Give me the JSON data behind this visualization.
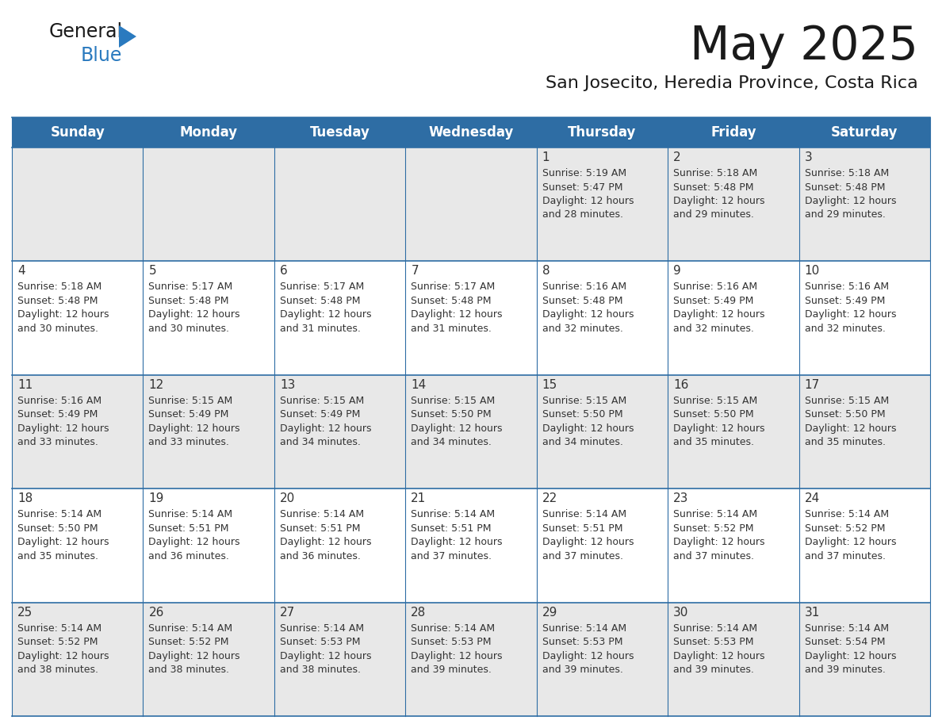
{
  "title": "May 2025",
  "subtitle": "San Josecito, Heredia Province, Costa Rica",
  "days_of_week": [
    "Sunday",
    "Monday",
    "Tuesday",
    "Wednesday",
    "Thursday",
    "Friday",
    "Saturday"
  ],
  "header_bg": "#2e6da4",
  "header_text": "#ffffff",
  "cell_bg_light": "#e8e8e8",
  "cell_bg_white": "#ffffff",
  "cell_text": "#333333",
  "border_color": "#2e6da4",
  "title_color": "#1a1a1a",
  "subtitle_color": "#1a1a1a",
  "logo_general_color": "#1a1a1a",
  "logo_blue_color": "#2a7abf",
  "logo_triangle_color": "#2a7abf",
  "calendar": [
    [
      null,
      null,
      null,
      null,
      {
        "day": 1,
        "sunrise": "5:19 AM",
        "sunset": "5:47 PM",
        "daylight": "12 hours and 28 minutes."
      },
      {
        "day": 2,
        "sunrise": "5:18 AM",
        "sunset": "5:48 PM",
        "daylight": "12 hours and 29 minutes."
      },
      {
        "day": 3,
        "sunrise": "5:18 AM",
        "sunset": "5:48 PM",
        "daylight": "12 hours and 29 minutes."
      }
    ],
    [
      {
        "day": 4,
        "sunrise": "5:18 AM",
        "sunset": "5:48 PM",
        "daylight": "12 hours and 30 minutes."
      },
      {
        "day": 5,
        "sunrise": "5:17 AM",
        "sunset": "5:48 PM",
        "daylight": "12 hours and 30 minutes."
      },
      {
        "day": 6,
        "sunrise": "5:17 AM",
        "sunset": "5:48 PM",
        "daylight": "12 hours and 31 minutes."
      },
      {
        "day": 7,
        "sunrise": "5:17 AM",
        "sunset": "5:48 PM",
        "daylight": "12 hours and 31 minutes."
      },
      {
        "day": 8,
        "sunrise": "5:16 AM",
        "sunset": "5:48 PM",
        "daylight": "12 hours and 32 minutes."
      },
      {
        "day": 9,
        "sunrise": "5:16 AM",
        "sunset": "5:49 PM",
        "daylight": "12 hours and 32 minutes."
      },
      {
        "day": 10,
        "sunrise": "5:16 AM",
        "sunset": "5:49 PM",
        "daylight": "12 hours and 32 minutes."
      }
    ],
    [
      {
        "day": 11,
        "sunrise": "5:16 AM",
        "sunset": "5:49 PM",
        "daylight": "12 hours and 33 minutes."
      },
      {
        "day": 12,
        "sunrise": "5:15 AM",
        "sunset": "5:49 PM",
        "daylight": "12 hours and 33 minutes."
      },
      {
        "day": 13,
        "sunrise": "5:15 AM",
        "sunset": "5:49 PM",
        "daylight": "12 hours and 34 minutes."
      },
      {
        "day": 14,
        "sunrise": "5:15 AM",
        "sunset": "5:50 PM",
        "daylight": "12 hours and 34 minutes."
      },
      {
        "day": 15,
        "sunrise": "5:15 AM",
        "sunset": "5:50 PM",
        "daylight": "12 hours and 34 minutes."
      },
      {
        "day": 16,
        "sunrise": "5:15 AM",
        "sunset": "5:50 PM",
        "daylight": "12 hours and 35 minutes."
      },
      {
        "day": 17,
        "sunrise": "5:15 AM",
        "sunset": "5:50 PM",
        "daylight": "12 hours and 35 minutes."
      }
    ],
    [
      {
        "day": 18,
        "sunrise": "5:14 AM",
        "sunset": "5:50 PM",
        "daylight": "12 hours and 35 minutes."
      },
      {
        "day": 19,
        "sunrise": "5:14 AM",
        "sunset": "5:51 PM",
        "daylight": "12 hours and 36 minutes."
      },
      {
        "day": 20,
        "sunrise": "5:14 AM",
        "sunset": "5:51 PM",
        "daylight": "12 hours and 36 minutes."
      },
      {
        "day": 21,
        "sunrise": "5:14 AM",
        "sunset": "5:51 PM",
        "daylight": "12 hours and 37 minutes."
      },
      {
        "day": 22,
        "sunrise": "5:14 AM",
        "sunset": "5:51 PM",
        "daylight": "12 hours and 37 minutes."
      },
      {
        "day": 23,
        "sunrise": "5:14 AM",
        "sunset": "5:52 PM",
        "daylight": "12 hours and 37 minutes."
      },
      {
        "day": 24,
        "sunrise": "5:14 AM",
        "sunset": "5:52 PM",
        "daylight": "12 hours and 37 minutes."
      }
    ],
    [
      {
        "day": 25,
        "sunrise": "5:14 AM",
        "sunset": "5:52 PM",
        "daylight": "12 hours and 38 minutes."
      },
      {
        "day": 26,
        "sunrise": "5:14 AM",
        "sunset": "5:52 PM",
        "daylight": "12 hours and 38 minutes."
      },
      {
        "day": 27,
        "sunrise": "5:14 AM",
        "sunset": "5:53 PM",
        "daylight": "12 hours and 38 minutes."
      },
      {
        "day": 28,
        "sunrise": "5:14 AM",
        "sunset": "5:53 PM",
        "daylight": "12 hours and 39 minutes."
      },
      {
        "day": 29,
        "sunrise": "5:14 AM",
        "sunset": "5:53 PM",
        "daylight": "12 hours and 39 minutes."
      },
      {
        "day": 30,
        "sunrise": "5:14 AM",
        "sunset": "5:53 PM",
        "daylight": "12 hours and 39 minutes."
      },
      {
        "day": 31,
        "sunrise": "5:14 AM",
        "sunset": "5:54 PM",
        "daylight": "12 hours and 39 minutes."
      }
    ]
  ]
}
